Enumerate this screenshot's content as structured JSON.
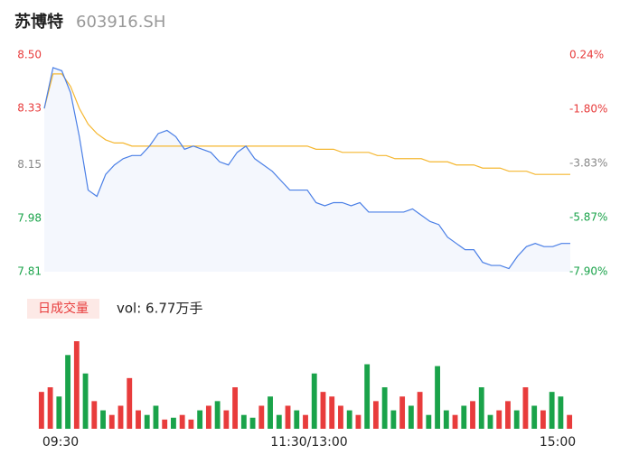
{
  "header": {
    "name": "苏博特",
    "code": "603916.SH"
  },
  "chart_data": [
    {
      "type": "line",
      "x": [
        0,
        4,
        8,
        12,
        16,
        20,
        24,
        28,
        32,
        36,
        40,
        44,
        48,
        52,
        56,
        60,
        64,
        68,
        72,
        76,
        80,
        84,
        88,
        92,
        96,
        100,
        104,
        108,
        112,
        116,
        120,
        124,
        128,
        132,
        136,
        140,
        144,
        148,
        152,
        156,
        160,
        164,
        168,
        172,
        176,
        180,
        184,
        188,
        192,
        196,
        200,
        204,
        208,
        212,
        216,
        220,
        224,
        228,
        232,
        236,
        240
      ],
      "xlim": [
        0,
        240
      ],
      "xticks": [
        {
          "value": 0,
          "label": "09:30"
        },
        {
          "value": 120,
          "label": "11:30/13:00"
        },
        {
          "value": 240,
          "label": "15:00"
        }
      ],
      "series": [
        {
          "name": "price",
          "color": "#4a7fe6",
          "values": [
            8.33,
            8.46,
            8.45,
            8.38,
            8.24,
            8.07,
            8.05,
            8.12,
            8.15,
            8.17,
            8.18,
            8.18,
            8.21,
            8.25,
            8.26,
            8.24,
            8.2,
            8.21,
            8.2,
            8.19,
            8.16,
            8.15,
            8.19,
            8.21,
            8.17,
            8.15,
            8.13,
            8.1,
            8.07,
            8.07,
            8.07,
            8.03,
            8.02,
            8.03,
            8.03,
            8.02,
            8.03,
            8.0,
            8.0,
            8.0,
            8.0,
            8.0,
            8.01,
            7.99,
            7.97,
            7.96,
            7.92,
            7.9,
            7.88,
            7.88,
            7.84,
            7.83,
            7.83,
            7.82,
            7.86,
            7.89,
            7.9,
            7.89,
            7.89,
            7.9,
            7.9
          ]
        },
        {
          "name": "average",
          "color": "#f5b731",
          "values": [
            8.33,
            8.44,
            8.44,
            8.4,
            8.33,
            8.28,
            8.25,
            8.23,
            8.22,
            8.22,
            8.21,
            8.21,
            8.21,
            8.21,
            8.21,
            8.21,
            8.21,
            8.21,
            8.21,
            8.21,
            8.21,
            8.21,
            8.21,
            8.21,
            8.21,
            8.21,
            8.21,
            8.21,
            8.21,
            8.21,
            8.21,
            8.2,
            8.2,
            8.2,
            8.19,
            8.19,
            8.19,
            8.19,
            8.18,
            8.18,
            8.17,
            8.17,
            8.17,
            8.17,
            8.16,
            8.16,
            8.16,
            8.15,
            8.15,
            8.15,
            8.14,
            8.14,
            8.14,
            8.13,
            8.13,
            8.13,
            8.12,
            8.12,
            8.12,
            8.12,
            8.12
          ]
        }
      ],
      "ylim": [
        7.81,
        8.5
      ],
      "yticks": [
        {
          "value": 8.5,
          "label": "8.50"
        },
        {
          "value": 8.33,
          "label": "8.33"
        },
        {
          "value": 8.15,
          "label": "8.15"
        },
        {
          "value": 7.98,
          "label": "7.98"
        },
        {
          "value": 7.81,
          "label": "7.81"
        }
      ],
      "ytick_colors": [
        "#e83c3c",
        "#e83c3c",
        "#888888",
        "#1aa34a",
        "#1aa34a"
      ],
      "y2lim": [
        -7.9,
        0.24
      ],
      "y2ticks": [
        {
          "value": 0.24,
          "label": "0.24%"
        },
        {
          "value": -1.8,
          "label": "-1.80%"
        },
        {
          "value": -3.83,
          "label": "-3.83%"
        },
        {
          "value": -5.87,
          "label": "-5.87%"
        },
        {
          "value": -7.9,
          "label": "-7.90%"
        }
      ],
      "y2tick_colors": [
        "#e83c3c",
        "#e83c3c",
        "#888888",
        "#1aa34a",
        "#1aa34a"
      ]
    },
    {
      "type": "bar",
      "title": "日成交量",
      "subtitle": "vol: 6.77万手",
      "values": [
        400,
        450,
        350,
        800,
        950,
        600,
        300,
        200,
        150,
        250,
        550,
        200,
        150,
        250,
        100,
        120,
        150,
        100,
        200,
        250,
        300,
        200,
        450,
        150,
        120,
        250,
        350,
        150,
        250,
        200,
        150,
        600,
        400,
        350,
        250,
        200,
        150,
        700,
        300,
        450,
        200,
        350,
        250,
        400,
        150,
        680,
        200,
        150,
        250,
        300,
        450,
        150,
        200,
        300,
        200,
        450,
        250,
        200,
        400,
        350,
        150
      ],
      "colors": [
        "#e83c3c",
        "#e83c3c",
        "#1aa34a",
        "#1aa34a",
        "#e83c3c",
        "#1aa34a",
        "#e83c3c",
        "#1aa34a",
        "#e83c3c",
        "#e83c3c",
        "#e83c3c",
        "#e83c3c",
        "#1aa34a",
        "#1aa34a",
        "#e83c3c",
        "#1aa34a",
        "#e83c3c",
        "#e83c3c",
        "#1aa34a",
        "#e83c3c",
        "#1aa34a",
        "#e83c3c",
        "#e83c3c",
        "#1aa34a",
        "#1aa34a",
        "#e83c3c",
        "#1aa34a",
        "#1aa34a",
        "#e83c3c",
        "#1aa34a",
        "#e83c3c",
        "#1aa34a",
        "#e83c3c",
        "#e83c3c",
        "#e83c3c",
        "#1aa34a",
        "#e83c3c",
        "#1aa34a",
        "#e83c3c",
        "#1aa34a",
        "#1aa34a",
        "#e83c3c",
        "#1aa34a",
        "#e83c3c",
        "#1aa34a",
        "#1aa34a",
        "#1aa34a",
        "#e83c3c",
        "#1aa34a",
        "#e83c3c",
        "#1aa34a",
        "#1aa34a",
        "#e83c3c",
        "#e83c3c",
        "#1aa34a",
        "#e83c3c",
        "#1aa34a",
        "#e83c3c",
        "#1aa34a",
        "#1aa34a",
        "#e83c3c"
      ]
    }
  ]
}
